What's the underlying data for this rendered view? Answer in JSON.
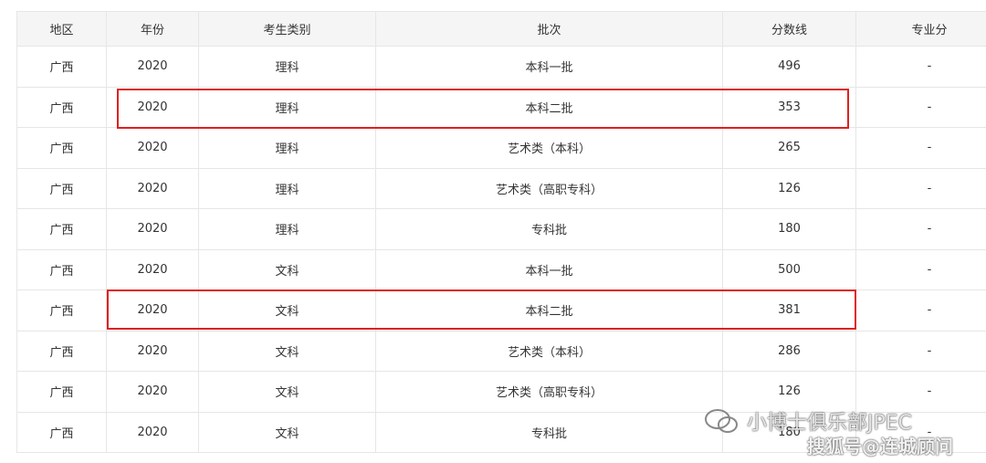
{
  "table": {
    "header": [
      "地区",
      "年份",
      "考生类别",
      "批次",
      "分数线",
      "专业分"
    ],
    "rows": [
      [
        "广西",
        "2020",
        "理科",
        "本科一批",
        "496",
        "-"
      ],
      [
        "广西",
        "2020",
        "理科",
        "本科二批",
        "353",
        "-"
      ],
      [
        "广西",
        "2020",
        "理科",
        "艺术类（本科）",
        "265",
        "-"
      ],
      [
        "广西",
        "2020",
        "理科",
        "艺术类（高职专科）",
        "126",
        "-"
      ],
      [
        "广西",
        "2020",
        "理科",
        "专科批",
        "180",
        "-"
      ],
      [
        "广西",
        "2020",
        "文科",
        "本科一批",
        "500",
        "-"
      ],
      [
        "广西",
        "2020",
        "文科",
        "本科二批",
        "381",
        "-"
      ],
      [
        "广西",
        "2020",
        "文科",
        "艺术类（本科）",
        "286",
        "-"
      ],
      [
        "广西",
        "2020",
        "文科",
        "艺术类（高职专科）",
        "126",
        "-"
      ],
      [
        "广西",
        "2020",
        "文科",
        "专科批",
        "180",
        "-"
      ]
    ]
  },
  "watermark": {
    "line1": "小博士俱乐部JPEC",
    "line2": "搜狐号@连城顾问"
  }
}
